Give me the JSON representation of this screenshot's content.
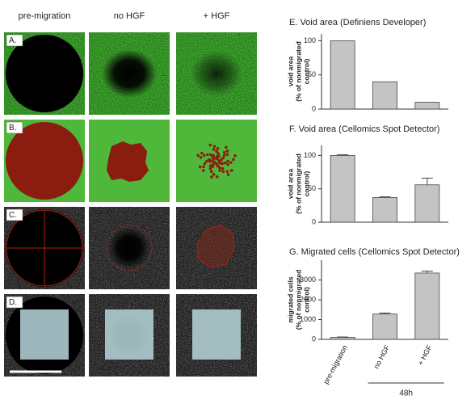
{
  "columns": [
    "pre-migration",
    "no HGF",
    "+ HGF"
  ],
  "rows": [
    "A.",
    "B.",
    "C.",
    "D."
  ],
  "chart_data": [
    {
      "type": "bar",
      "title": "E. Void area (Definiens Developer)",
      "ylabel": [
        "void area",
        "(% of nonmigrated",
        "control)"
      ],
      "values": [
        100,
        40,
        10
      ],
      "color": "#c4c4c4",
      "ylim": [
        0,
        110
      ],
      "yticks": [
        0,
        50,
        100
      ]
    },
    {
      "type": "bar",
      "title": "F. Void area (Cellomics Spot Detector)",
      "ylabel": [
        "void area",
        "(% of nonmigrated",
        "control)"
      ],
      "values": [
        100,
        37,
        56
      ],
      "errors": [
        1,
        1,
        10
      ],
      "color": "#c4c4c4",
      "ylim": [
        0,
        115
      ],
      "yticks": [
        0,
        50,
        100
      ]
    },
    {
      "type": "bar",
      "title": "G. Migrated cells (Cellomics Spot Detector)",
      "ylabel": [
        "migrated cells",
        "(% of nonmigrated",
        "control)"
      ],
      "categories": [
        "pre-migration",
        "no HGF",
        "+ HGF"
      ],
      "values": [
        100,
        1280,
        3350
      ],
      "errors": [
        20,
        50,
        100
      ],
      "color": "#c4c4c4",
      "ylim": [
        0,
        4000
      ],
      "yticks": [
        0,
        1000,
        2000,
        3000
      ],
      "annotation": "48h"
    }
  ]
}
